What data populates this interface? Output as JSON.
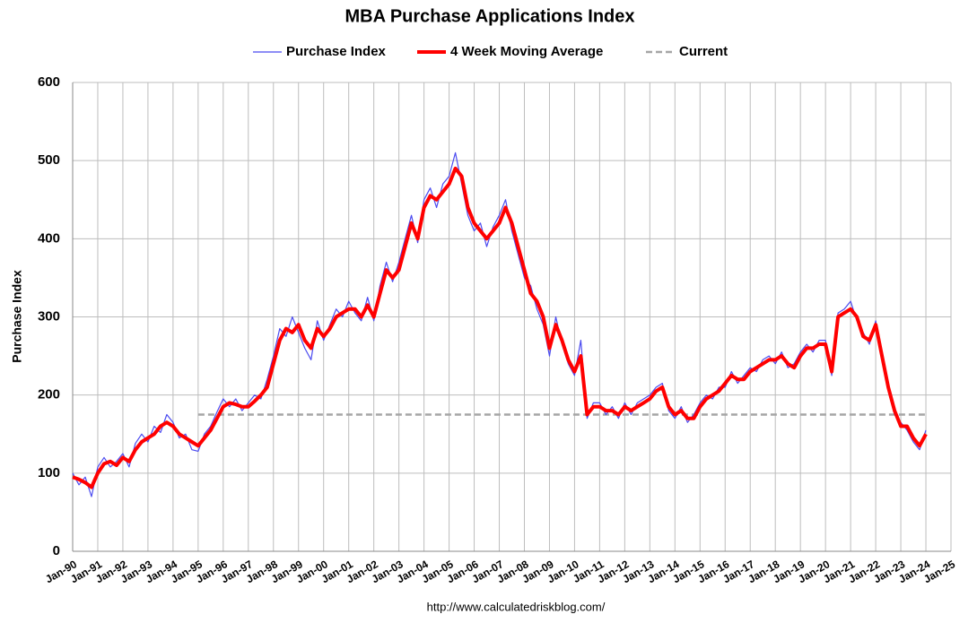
{
  "chart_data": {
    "type": "line",
    "title": "MBA Purchase Applications Index",
    "y_label": "Purchase Index",
    "source": "http://www.calculatedriskblog.com/",
    "grid": true,
    "xlim": [
      1990,
      2025
    ],
    "ylim": [
      0,
      600
    ],
    "yticks": [
      0,
      100,
      200,
      300,
      400,
      500,
      600
    ],
    "xticks": [
      {
        "value": 1990,
        "label": "Jan-90"
      },
      {
        "value": 1991,
        "label": "Jan-91"
      },
      {
        "value": 1992,
        "label": "Jan-92"
      },
      {
        "value": 1993,
        "label": "Jan-93"
      },
      {
        "value": 1994,
        "label": "Jan-94"
      },
      {
        "value": 1995,
        "label": "Jan-95"
      },
      {
        "value": 1996,
        "label": "Jan-96"
      },
      {
        "value": 1997,
        "label": "Jan-97"
      },
      {
        "value": 1998,
        "label": "Jan-98"
      },
      {
        "value": 1999,
        "label": "Jan-99"
      },
      {
        "value": 2000,
        "label": "Jan-00"
      },
      {
        "value": 2001,
        "label": "Jan-01"
      },
      {
        "value": 2002,
        "label": "Jan-02"
      },
      {
        "value": 2003,
        "label": "Jan-03"
      },
      {
        "value": 2004,
        "label": "Jan-04"
      },
      {
        "value": 2005,
        "label": "Jan-05"
      },
      {
        "value": 2006,
        "label": "Jan-06"
      },
      {
        "value": 2007,
        "label": "Jan-07"
      },
      {
        "value": 2008,
        "label": "Jan-08"
      },
      {
        "value": 2009,
        "label": "Jan-09"
      },
      {
        "value": 2010,
        "label": "Jan-10"
      },
      {
        "value": 2011,
        "label": "Jan-11"
      },
      {
        "value": 2012,
        "label": "Jan-12"
      },
      {
        "value": 2013,
        "label": "Jan-13"
      },
      {
        "value": 2014,
        "label": "Jan-14"
      },
      {
        "value": 2015,
        "label": "Jan-15"
      },
      {
        "value": 2016,
        "label": "Jan-16"
      },
      {
        "value": 2017,
        "label": "Jan-17"
      },
      {
        "value": 2018,
        "label": "Jan-18"
      },
      {
        "value": 2019,
        "label": "Jan-19"
      },
      {
        "value": 2020,
        "label": "Jan-20"
      },
      {
        "value": 2021,
        "label": "Jan-21"
      },
      {
        "value": 2022,
        "label": "Jan-22"
      },
      {
        "value": 2023,
        "label": "Jan-23"
      },
      {
        "value": 2024,
        "label": "Jan-24"
      },
      {
        "value": 2025,
        "label": "Jan-25"
      }
    ],
    "x": [
      1990,
      1990.25,
      1990.5,
      1990.75,
      1991,
      1991.25,
      1991.5,
      1991.75,
      1992,
      1992.25,
      1992.5,
      1992.75,
      1993,
      1993.25,
      1993.5,
      1993.75,
      1994,
      1994.25,
      1994.5,
      1994.75,
      1995,
      1995.25,
      1995.5,
      1995.75,
      1996,
      1996.25,
      1996.5,
      1996.75,
      1997,
      1997.25,
      1997.5,
      1997.75,
      1998,
      1998.25,
      1998.5,
      1998.75,
      1999,
      1999.25,
      1999.5,
      1999.75,
      2000,
      2000.25,
      2000.5,
      2000.75,
      2001,
      2001.25,
      2001.5,
      2001.75,
      2002,
      2002.25,
      2002.5,
      2002.75,
      2003,
      2003.25,
      2003.5,
      2003.75,
      2004,
      2004.25,
      2004.5,
      2004.75,
      2005,
      2005.25,
      2005.5,
      2005.75,
      2006,
      2006.25,
      2006.5,
      2006.75,
      2007,
      2007.25,
      2007.5,
      2007.75,
      2008,
      2008.25,
      2008.5,
      2008.75,
      2009,
      2009.25,
      2009.5,
      2009.75,
      2010,
      2010.25,
      2010.5,
      2010.75,
      2011,
      2011.25,
      2011.5,
      2011.75,
      2012,
      2012.25,
      2012.5,
      2012.75,
      2013,
      2013.25,
      2013.5,
      2013.75,
      2014,
      2014.25,
      2014.5,
      2014.75,
      2015,
      2015.25,
      2015.5,
      2015.75,
      2016,
      2016.25,
      2016.5,
      2016.75,
      2017,
      2017.25,
      2017.5,
      2017.75,
      2018,
      2018.25,
      2018.5,
      2018.75,
      2019,
      2019.25,
      2019.5,
      2019.75,
      2020,
      2020.25,
      2020.5,
      2020.75,
      2021,
      2021.25,
      2021.5,
      2021.75,
      2022,
      2022.25,
      2022.5,
      2022.75,
      2023,
      2023.25,
      2023.5,
      2023.75,
      2024
    ],
    "series": [
      {
        "name": "Purchase Index",
        "color": "#4b4bf0",
        "line_width": 1.2,
        "values": [
          100,
          85,
          95,
          70,
          108,
          120,
          108,
          115,
          125,
          108,
          138,
          150,
          140,
          160,
          152,
          175,
          165,
          145,
          150,
          130,
          128,
          150,
          160,
          178,
          195,
          185,
          195,
          180,
          190,
          200,
          195,
          220,
          250,
          285,
          275,
          300,
          280,
          260,
          245,
          295,
          270,
          290,
          310,
          300,
          320,
          305,
          295,
          325,
          295,
          340,
          370,
          345,
          370,
          400,
          430,
          395,
          450,
          465,
          440,
          470,
          480,
          510,
          470,
          430,
          410,
          420,
          390,
          415,
          430,
          450,
          410,
          380,
          350,
          340,
          310,
          290,
          250,
          300,
          265,
          240,
          225,
          270,
          170,
          190,
          190,
          175,
          185,
          170,
          190,
          175,
          190,
          195,
          200,
          210,
          215,
          180,
          170,
          185,
          165,
          175,
          190,
          200,
          195,
          210,
          210,
          230,
          215,
          225,
          235,
          230,
          245,
          250,
          240,
          255,
          235,
          240,
          255,
          265,
          255,
          270,
          270,
          225,
          305,
          310,
          320,
          295,
          280,
          265,
          295,
          245,
          205,
          175,
          165,
          155,
          140,
          130,
          155
        ]
      },
      {
        "name": "4 Week Moving Average",
        "color": "#ff0000",
        "line_width": 4,
        "values": [
          95,
          92,
          88,
          82,
          100,
          112,
          115,
          110,
          120,
          115,
          130,
          140,
          145,
          150,
          160,
          165,
          160,
          150,
          145,
          140,
          135,
          145,
          155,
          170,
          185,
          190,
          188,
          185,
          185,
          192,
          200,
          210,
          240,
          270,
          285,
          280,
          290,
          270,
          260,
          285,
          275,
          285,
          300,
          305,
          310,
          310,
          300,
          315,
          300,
          330,
          360,
          350,
          360,
          390,
          420,
          400,
          440,
          455,
          450,
          460,
          470,
          490,
          480,
          440,
          420,
          410,
          400,
          410,
          420,
          440,
          420,
          390,
          360,
          330,
          320,
          300,
          260,
          290,
          270,
          245,
          230,
          250,
          175,
          185,
          185,
          180,
          180,
          175,
          185,
          180,
          185,
          190,
          195,
          205,
          210,
          185,
          175,
          180,
          170,
          170,
          185,
          195,
          200,
          205,
          215,
          225,
          220,
          220,
          230,
          235,
          240,
          245,
          245,
          250,
          240,
          235,
          250,
          260,
          260,
          265,
          265,
          230,
          300,
          305,
          310,
          300,
          275,
          270,
          290,
          250,
          210,
          180,
          160,
          160,
          145,
          135,
          150
        ]
      },
      {
        "name": "Current",
        "color": "#a6a6a6",
        "line_width": 2.5,
        "style": "dashed",
        "x": [
          1995,
          2024.1
        ],
        "values": [
          175,
          175
        ]
      }
    ]
  }
}
